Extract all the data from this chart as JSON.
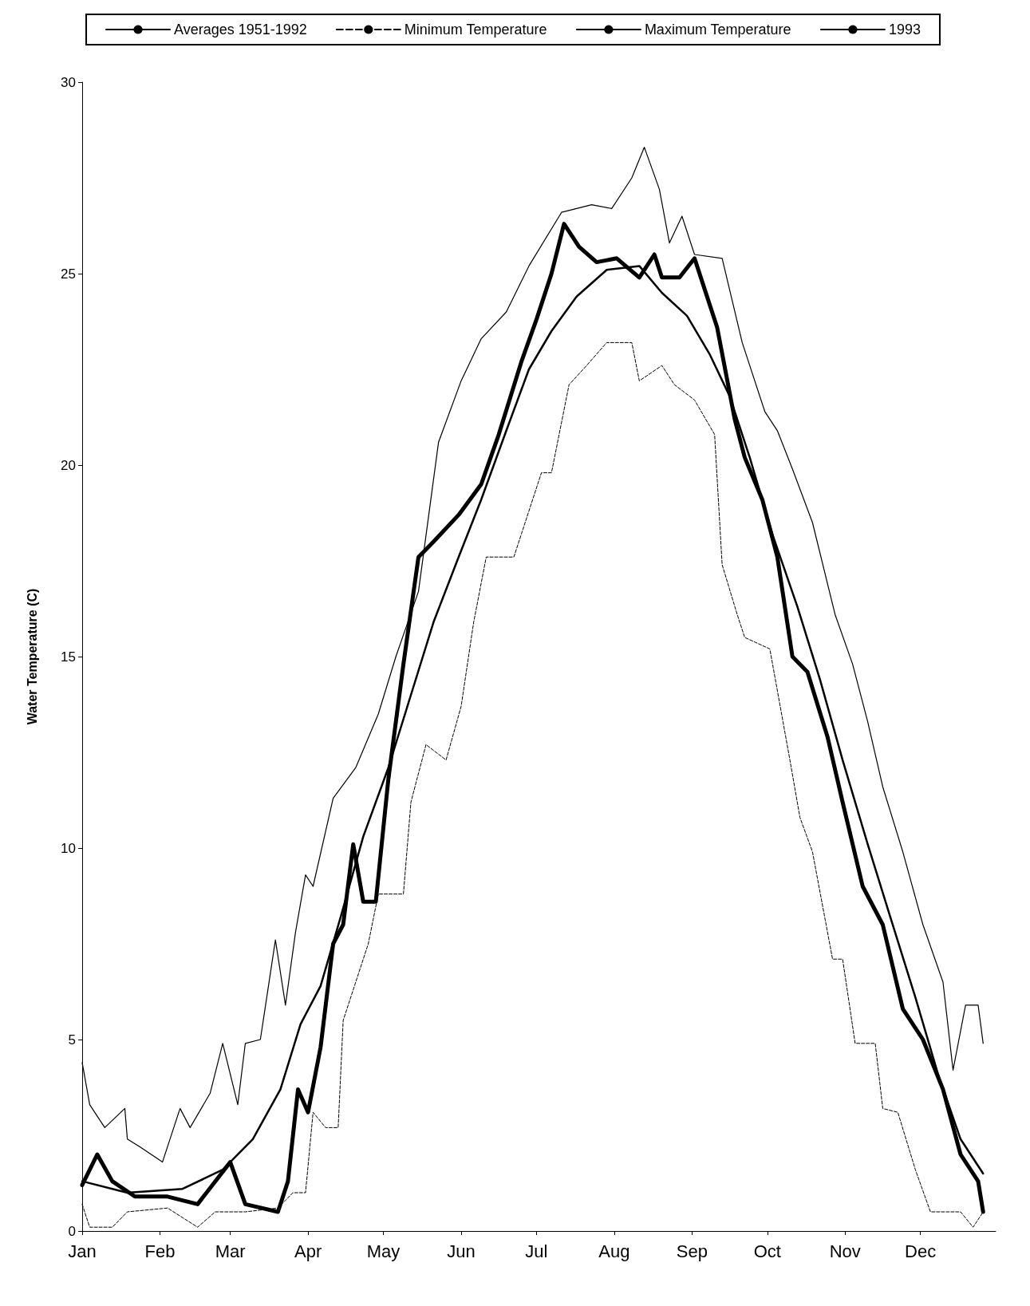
{
  "chart_data": {
    "type": "line",
    "ylabel": "Water Temperature (C)",
    "legend": "top",
    "grid": false,
    "marker": "none",
    "xlim": [
      "--01-01",
      "--12-31"
    ],
    "ylim": [
      0,
      30
    ],
    "yticks": [
      0,
      5,
      10,
      15,
      20,
      25,
      30
    ],
    "xticks": [
      {
        "value": "--01-01",
        "label": "Jan"
      },
      {
        "value": "--02-01",
        "label": "Feb"
      },
      {
        "value": "--03-01",
        "label": "Mar"
      },
      {
        "value": "--04-01",
        "label": "Apr"
      },
      {
        "value": "--05-01",
        "label": "May"
      },
      {
        "value": "--06-01",
        "label": "Jun"
      },
      {
        "value": "--07-01",
        "label": "Jul"
      },
      {
        "value": "--08-01",
        "label": "Aug"
      },
      {
        "value": "--09-01",
        "label": "Sep"
      },
      {
        "value": "--10-01",
        "label": "Oct"
      },
      {
        "value": "--11-01",
        "label": "Nov"
      },
      {
        "value": "--12-01",
        "label": "Dec"
      }
    ],
    "series": [
      {
        "name": "Averages 1951-1992",
        "color": "#000000",
        "line_style": "solid",
        "x": [
          "--01-01",
          "--01-19",
          "--02-10",
          "--02-26",
          "--03-10",
          "--03-21",
          "--03-29",
          "--04-06",
          "--04-14",
          "--04-23",
          "--05-03",
          "--05-12",
          "--05-21",
          "--05-31",
          "--06-09",
          "--06-19",
          "--06-28",
          "--07-07",
          "--07-17",
          "--07-29",
          "--08-11",
          "--08-20",
          "--08-30",
          "--09-08",
          "--09-16",
          "--09-24",
          "--10-03",
          "--10-13",
          "--10-22",
          "--10-31",
          "--11-10",
          "--11-19",
          "--11-29",
          "--12-08",
          "--12-17",
          "--12-26"
        ],
        "values": [
          1.3,
          1.0,
          1.1,
          1.6,
          2.4,
          3.7,
          5.4,
          6.4,
          8.2,
          10.3,
          12.1,
          14.0,
          15.9,
          17.6,
          19.1,
          20.9,
          22.5,
          23.5,
          24.4,
          25.1,
          25.2,
          24.5,
          23.9,
          22.9,
          21.8,
          20.2,
          18.2,
          16.3,
          14.4,
          12.3,
          10.1,
          8.2,
          6.1,
          4.1,
          2.4,
          1.5
        ]
      },
      {
        "name": "Minimum Temperature",
        "color": "#000000",
        "line_style": "dashed",
        "x": [
          "--01-01",
          "--01-04",
          "--01-13",
          "--01-19",
          "--02-04",
          "--02-16",
          "--02-23",
          "--03-07",
          "--03-20",
          "--03-26",
          "--03-31",
          "--04-03",
          "--04-08",
          "--04-13",
          "--04-15",
          "--04-20",
          "--04-25",
          "--04-29",
          "--05-09",
          "--05-12",
          "--05-18",
          "--05-26",
          "--06-01",
          "--06-06",
          "--06-11",
          "--06-22",
          "--06-25",
          "--07-03",
          "--07-07",
          "--07-14",
          "--07-21",
          "--07-29",
          "--08-08",
          "--08-11",
          "--08-20",
          "--08-25",
          "--09-02",
          "--09-10",
          "--09-13",
          "--09-19",
          "--09-22",
          "--10-02",
          "--10-10",
          "--10-14",
          "--10-19",
          "--10-27",
          "--10-31",
          "--11-05",
          "--11-13",
          "--11-16",
          "--11-22",
          "--11-29",
          "--12-05",
          "--12-17",
          "--12-22",
          "--12-26"
        ],
        "values": [
          0.7,
          0.1,
          0.1,
          0.5,
          0.6,
          0.1,
          0.5,
          0.5,
          0.6,
          1.0,
          1.0,
          3.1,
          2.7,
          2.7,
          5.5,
          6.5,
          7.5,
          8.8,
          8.8,
          11.2,
          12.7,
          12.3,
          13.7,
          15.9,
          17.6,
          17.6,
          18.2,
          19.8,
          19.8,
          22.1,
          22.6,
          23.2,
          23.2,
          22.2,
          22.6,
          22.1,
          21.7,
          20.8,
          17.4,
          16.1,
          15.5,
          15.2,
          12.3,
          10.8,
          9.9,
          7.1,
          7.1,
          4.9,
          4.9,
          3.2,
          3.1,
          1.6,
          0.5,
          0.5,
          0.1,
          0.5
        ]
      },
      {
        "name": "Maximum Temperature",
        "color": "#000000",
        "line_style": "solid",
        "x": [
          "--01-01",
          "--01-04",
          "--01-10",
          "--01-18",
          "--01-19",
          "--01-24",
          "--02-02",
          "--02-09",
          "--02-13",
          "--02-21",
          "--02-26",
          "--03-04",
          "--03-07",
          "--03-13",
          "--03-19",
          "--03-23",
          "--03-27",
          "--03-31",
          "--04-03",
          "--04-11",
          "--04-20",
          "--04-29",
          "--05-06",
          "--05-15",
          "--05-23",
          "--06-01",
          "--06-09",
          "--06-19",
          "--06-28",
          "--07-11",
          "--07-23",
          "--07-31",
          "--08-08",
          "--08-13",
          "--08-19",
          "--08-23",
          "--08-28",
          "--09-02",
          "--09-13",
          "--09-21",
          "--09-30",
          "--10-05",
          "--10-11",
          "--10-19",
          "--10-28",
          "--11-04",
          "--11-10",
          "--11-16",
          "--11-24",
          "--12-02",
          "--12-10",
          "--12-14",
          "--12-19",
          "--12-24",
          "--12-26"
        ],
        "values": [
          4.4,
          3.3,
          2.7,
          3.2,
          2.4,
          2.2,
          1.8,
          3.2,
          2.7,
          3.6,
          4.9,
          3.3,
          4.9,
          5.0,
          7.6,
          5.9,
          7.8,
          9.3,
          9.0,
          11.3,
          12.1,
          13.5,
          15.0,
          16.7,
          20.6,
          22.2,
          23.3,
          24.0,
          25.2,
          26.6,
          26.8,
          26.7,
          27.5,
          28.3,
          27.2,
          25.8,
          26.5,
          25.5,
          25.4,
          23.2,
          21.4,
          20.9,
          19.9,
          18.5,
          16.1,
          14.8,
          13.3,
          11.6,
          9.9,
          8.0,
          6.5,
          4.2,
          5.9,
          5.9,
          4.9
        ]
      },
      {
        "name": "1993",
        "color": "#000000",
        "line_style": "solid",
        "x": [
          "--01-01",
          "--01-07",
          "--01-13",
          "--01-22",
          "--02-04",
          "--02-16",
          "--03-01",
          "--03-07",
          "--03-20",
          "--03-24",
          "--03-28",
          "--04-01",
          "--04-06",
          "--04-11",
          "--04-15",
          "--04-19",
          "--04-23",
          "--04-28",
          "--05-03",
          "--05-09",
          "--05-15",
          "--05-21",
          "--05-31",
          "--06-09",
          "--06-16",
          "--06-25",
          "--07-01",
          "--07-07",
          "--07-12",
          "--07-18",
          "--07-25",
          "--08-02",
          "--08-11",
          "--08-17",
          "--08-20",
          "--08-27",
          "--09-02",
          "--09-05",
          "--09-11",
          "--09-18",
          "--09-22",
          "--09-29",
          "--10-05",
          "--10-11",
          "--10-17",
          "--10-25",
          "--10-31",
          "--11-08",
          "--11-16",
          "--11-24",
          "--12-02",
          "--12-10",
          "--12-17",
          "--12-24",
          "--12-26"
        ],
        "values": [
          1.2,
          2.0,
          1.3,
          0.9,
          0.9,
          0.7,
          1.8,
          0.7,
          0.5,
          1.3,
          3.7,
          3.1,
          4.8,
          7.5,
          8.0,
          10.1,
          8.6,
          8.6,
          11.8,
          14.8,
          17.6,
          18.0,
          18.7,
          19.5,
          20.8,
          22.7,
          23.8,
          25.0,
          26.3,
          25.7,
          25.3,
          25.4,
          24.9,
          25.5,
          24.9,
          24.9,
          25.4,
          24.8,
          23.6,
          21.2,
          20.2,
          19.1,
          17.6,
          15.0,
          14.6,
          12.9,
          11.2,
          9.0,
          8.0,
          5.8,
          5.0,
          3.7,
          2.0,
          1.3,
          0.5
        ]
      }
    ]
  }
}
